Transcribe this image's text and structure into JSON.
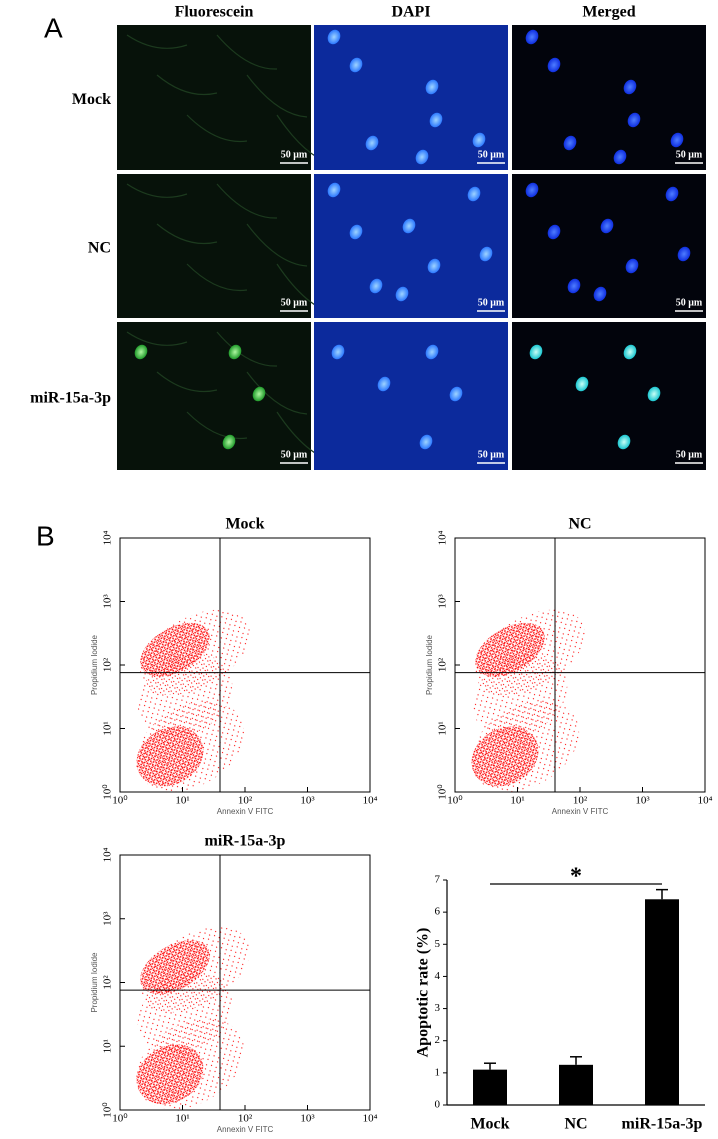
{
  "panel_a": {
    "label": "A",
    "columns": [
      "Fluorescein",
      "DAPI",
      "Merged"
    ],
    "rows": [
      "Mock",
      "NC",
      "miR-15a-3p"
    ],
    "scale_bar": "50 μm"
  },
  "panel_b": {
    "label": "B"
  },
  "chart_data": [
    {
      "type": "flow",
      "title": "Mock",
      "xlabel": "Annexin V FITC",
      "ylabel": "Propidium Iodide",
      "log_scale": true,
      "xlim": [
        1,
        10000
      ],
      "ylim": [
        1,
        10000
      ],
      "xticks": [
        {
          "value": 1,
          "label": "10⁰"
        },
        {
          "value": 10,
          "label": "10¹"
        },
        {
          "value": 100,
          "label": "10²"
        },
        {
          "value": 1000,
          "label": "10³"
        },
        {
          "value": 10000,
          "label": "10⁴"
        }
      ],
      "yticks": [
        {
          "value": 1,
          "label": "10⁰"
        },
        {
          "value": 10,
          "label": "10¹"
        },
        {
          "value": 100,
          "label": "10²"
        },
        {
          "value": 1000,
          "label": "10³"
        },
        {
          "value": 10000,
          "label": "10⁴"
        }
      ],
      "color": "#ff0000"
    },
    {
      "type": "flow",
      "title": "NC",
      "xlabel": "Annexin V FITC",
      "ylabel": "Propidium Iodide",
      "log_scale": true,
      "xlim": [
        1,
        10000
      ],
      "ylim": [
        1,
        10000
      ],
      "xticks": [
        {
          "value": 1,
          "label": "10⁰"
        },
        {
          "value": 10,
          "label": "10¹"
        },
        {
          "value": 100,
          "label": "10²"
        },
        {
          "value": 1000,
          "label": "10³"
        },
        {
          "value": 10000,
          "label": "10⁴"
        }
      ],
      "yticks": [
        {
          "value": 1,
          "label": "10⁰"
        },
        {
          "value": 10,
          "label": "10¹"
        },
        {
          "value": 100,
          "label": "10²"
        },
        {
          "value": 1000,
          "label": "10³"
        },
        {
          "value": 10000,
          "label": "10⁴"
        }
      ],
      "color": "#ff0000"
    },
    {
      "type": "flow",
      "title": "miR-15a-3p",
      "xlabel": "Annexin V FITC",
      "ylabel": "Propidium Iodide",
      "log_scale": true,
      "xlim": [
        1,
        10000
      ],
      "ylim": [
        1,
        10000
      ],
      "xticks": [
        {
          "value": 1,
          "label": "10⁰"
        },
        {
          "value": 10,
          "label": "10¹"
        },
        {
          "value": 100,
          "label": "10²"
        },
        {
          "value": 1000,
          "label": "10³"
        },
        {
          "value": 10000,
          "label": "10⁴"
        }
      ],
      "yticks": [
        {
          "value": 1,
          "label": "10⁰"
        },
        {
          "value": 10,
          "label": "10¹"
        },
        {
          "value": 100,
          "label": "10²"
        },
        {
          "value": 1000,
          "label": "10³"
        },
        {
          "value": 10000,
          "label": "10⁴"
        }
      ],
      "color": "#ff0000"
    },
    {
      "type": "bar",
      "ylabel": "Apoptotic rate (%)",
      "categories": [
        "Mock",
        "NC",
        "miR-15a-3p"
      ],
      "values": [
        1.1,
        1.25,
        6.4
      ],
      "errors": [
        0.2,
        0.25,
        0.3
      ],
      "color": "#000000",
      "ylim": [
        0,
        7
      ],
      "yticks": [
        0,
        1,
        2,
        3,
        4,
        5,
        6,
        7
      ],
      "annotation": "*"
    }
  ]
}
